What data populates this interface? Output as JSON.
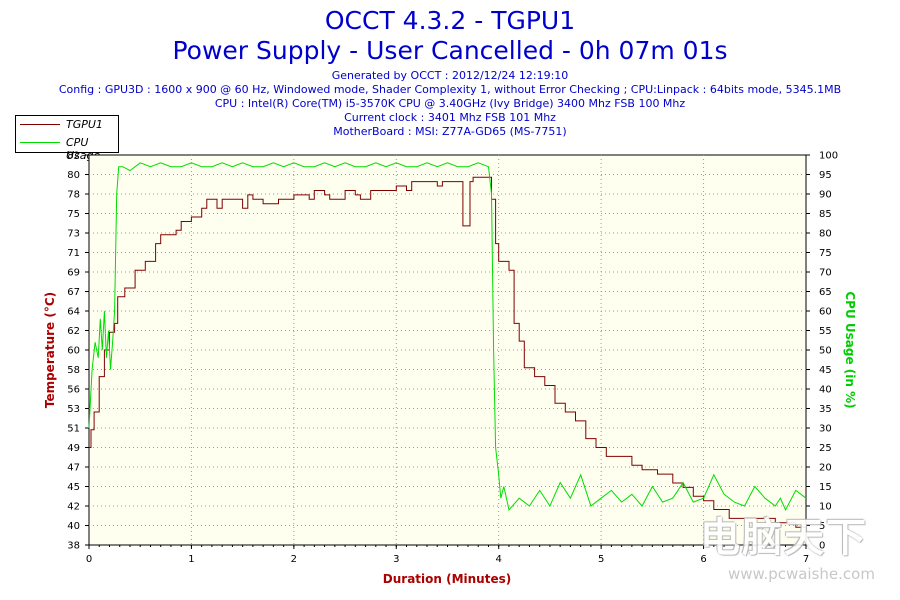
{
  "header": {
    "title_line1": "OCCT 4.3.2 - TGPU1",
    "title_line2": "Power Supply - User Cancelled - 0h 07m 01s",
    "info_lines": [
      "Generated by OCCT : 2012/12/24 12:19:10",
      "Config : GPU3D : 1600 x 900 @ 60 Hz, Windowed mode, Shader Complexity 1, without Error Checking ; CPU:Linpack : 64bits mode, 5345.1MB",
      "CPU : Intel(R) Core(TM) i5-3570K CPU @ 3.40GHz (Ivy Bridge) 3400 Mhz FSB 100 Mhz",
      "Current clock : 3401 Mhz FSB 101 Mhz",
      "MotherBoard : MSI: Z77A-GD65 (MS-7751)"
    ]
  },
  "legend": [
    {
      "label": "TGPU1",
      "color": "#800000"
    },
    {
      "label": "CPU Usage",
      "color": "#00dd00"
    }
  ],
  "watermark": {
    "text_cn": "电脑天下",
    "url": "www.pcwaishe.com"
  },
  "chart_data": {
    "type": "line",
    "xlabel": "Duration (Minutes)",
    "ylabel_left": "Temperature (°C)",
    "ylabel_right": "CPU Usage (in %)",
    "xlim": [
      0,
      7
    ],
    "x_ticks": [
      "0",
      "1",
      "2",
      "3",
      "4",
      "5",
      "6",
      "7"
    ],
    "ylim_left": [
      38,
      82
    ],
    "y_ticks_left": [
      "38",
      "40",
      "42",
      "45",
      "47",
      "49",
      "51",
      "53",
      "56",
      "58",
      "60",
      "62",
      "64",
      "67",
      "69",
      "71",
      "73",
      "75",
      "78",
      "80",
      "82"
    ],
    "ylim_right": [
      0,
      100
    ],
    "y_ticks_right": [
      "0",
      "5",
      "10",
      "15",
      "20",
      "25",
      "30",
      "35",
      "40",
      "45",
      "50",
      "55",
      "60",
      "65",
      "70",
      "75",
      "80",
      "85",
      "90",
      "95",
      "100"
    ],
    "grid": true,
    "legend_position": "top-left",
    "series": [
      {
        "name": "TGPU1",
        "axis": "left",
        "color": "#800000",
        "points": [
          [
            0.0,
            49
          ],
          [
            0.02,
            51
          ],
          [
            0.05,
            53
          ],
          [
            0.1,
            57
          ],
          [
            0.15,
            60
          ],
          [
            0.2,
            62
          ],
          [
            0.25,
            63
          ],
          [
            0.28,
            66
          ],
          [
            0.35,
            67
          ],
          [
            0.45,
            69
          ],
          [
            0.55,
            70
          ],
          [
            0.65,
            72
          ],
          [
            0.7,
            73
          ],
          [
            0.85,
            73.5
          ],
          [
            0.9,
            74.5
          ],
          [
            1.0,
            75
          ],
          [
            1.1,
            76
          ],
          [
            1.15,
            77
          ],
          [
            1.25,
            76
          ],
          [
            1.3,
            77
          ],
          [
            1.45,
            77
          ],
          [
            1.5,
            76
          ],
          [
            1.55,
            77.5
          ],
          [
            1.6,
            77
          ],
          [
            1.7,
            76.5
          ],
          [
            1.85,
            77
          ],
          [
            2.0,
            77.5
          ],
          [
            2.1,
            77.5
          ],
          [
            2.15,
            77
          ],
          [
            2.2,
            78
          ],
          [
            2.3,
            77.5
          ],
          [
            2.35,
            77
          ],
          [
            2.45,
            77
          ],
          [
            2.5,
            78
          ],
          [
            2.6,
            77.5
          ],
          [
            2.65,
            77
          ],
          [
            2.75,
            78
          ],
          [
            2.9,
            78
          ],
          [
            3.0,
            78.5
          ],
          [
            3.1,
            78
          ],
          [
            3.15,
            79
          ],
          [
            3.3,
            79
          ],
          [
            3.4,
            78.5
          ],
          [
            3.45,
            79
          ],
          [
            3.6,
            79
          ],
          [
            3.65,
            74
          ],
          [
            3.7,
            74
          ],
          [
            3.72,
            79
          ],
          [
            3.75,
            79.5
          ],
          [
            3.85,
            79.5
          ],
          [
            3.9,
            79.5
          ],
          [
            3.93,
            77
          ],
          [
            3.97,
            72
          ],
          [
            4.0,
            70
          ],
          [
            4.1,
            69
          ],
          [
            4.15,
            63
          ],
          [
            4.2,
            61
          ],
          [
            4.25,
            58
          ],
          [
            4.35,
            57
          ],
          [
            4.45,
            56
          ],
          [
            4.55,
            54
          ],
          [
            4.65,
            53
          ],
          [
            4.75,
            52
          ],
          [
            4.85,
            50
          ],
          [
            4.95,
            49
          ],
          [
            5.05,
            48
          ],
          [
            5.2,
            48
          ],
          [
            5.3,
            47
          ],
          [
            5.4,
            46.5
          ],
          [
            5.55,
            46
          ],
          [
            5.7,
            45
          ],
          [
            5.8,
            44.5
          ],
          [
            5.9,
            43.5
          ],
          [
            6.0,
            43
          ],
          [
            6.1,
            42
          ],
          [
            6.2,
            42
          ],
          [
            6.25,
            41
          ],
          [
            6.4,
            41
          ],
          [
            6.5,
            41
          ],
          [
            6.7,
            40.5
          ],
          [
            6.9,
            40
          ],
          [
            7.0,
            40
          ]
        ]
      },
      {
        "name": "CPU Usage",
        "axis": "right",
        "color": "#00dd00",
        "points": [
          [
            0.0,
            30
          ],
          [
            0.03,
            45
          ],
          [
            0.06,
            52
          ],
          [
            0.09,
            48
          ],
          [
            0.11,
            58
          ],
          [
            0.13,
            50
          ],
          [
            0.15,
            60
          ],
          [
            0.17,
            48
          ],
          [
            0.19,
            55
          ],
          [
            0.21,
            45
          ],
          [
            0.23,
            52
          ],
          [
            0.25,
            60
          ],
          [
            0.27,
            90
          ],
          [
            0.29,
            97
          ],
          [
            0.33,
            97
          ],
          [
            0.4,
            96
          ],
          [
            0.5,
            98
          ],
          [
            0.6,
            97
          ],
          [
            0.7,
            98
          ],
          [
            0.8,
            97
          ],
          [
            0.9,
            97
          ],
          [
            1.0,
            98
          ],
          [
            1.1,
            97
          ],
          [
            1.2,
            97
          ],
          [
            1.3,
            98
          ],
          [
            1.4,
            97
          ],
          [
            1.5,
            98
          ],
          [
            1.6,
            97
          ],
          [
            1.7,
            97
          ],
          [
            1.8,
            98
          ],
          [
            1.9,
            97
          ],
          [
            2.0,
            98
          ],
          [
            2.1,
            97
          ],
          [
            2.2,
            97
          ],
          [
            2.3,
            98
          ],
          [
            2.4,
            97
          ],
          [
            2.5,
            98
          ],
          [
            2.6,
            97
          ],
          [
            2.7,
            97
          ],
          [
            2.8,
            98
          ],
          [
            2.9,
            97
          ],
          [
            3.0,
            98
          ],
          [
            3.1,
            97
          ],
          [
            3.2,
            97
          ],
          [
            3.3,
            98
          ],
          [
            3.4,
            97
          ],
          [
            3.5,
            98
          ],
          [
            3.6,
            97
          ],
          [
            3.7,
            97
          ],
          [
            3.8,
            98
          ],
          [
            3.9,
            97
          ],
          [
            3.93,
            90
          ],
          [
            3.95,
            50
          ],
          [
            3.97,
            25
          ],
          [
            4.0,
            18
          ],
          [
            4.02,
            12
          ],
          [
            4.05,
            15
          ],
          [
            4.1,
            9
          ],
          [
            4.2,
            12
          ],
          [
            4.3,
            10
          ],
          [
            4.4,
            14
          ],
          [
            4.5,
            10
          ],
          [
            4.6,
            16
          ],
          [
            4.7,
            12
          ],
          [
            4.8,
            18
          ],
          [
            4.9,
            10
          ],
          [
            5.0,
            12
          ],
          [
            5.1,
            14
          ],
          [
            5.2,
            11
          ],
          [
            5.3,
            13
          ],
          [
            5.4,
            10
          ],
          [
            5.5,
            15
          ],
          [
            5.6,
            11
          ],
          [
            5.7,
            12
          ],
          [
            5.8,
            16
          ],
          [
            5.9,
            11
          ],
          [
            6.0,
            12
          ],
          [
            6.1,
            18
          ],
          [
            6.2,
            13
          ],
          [
            6.3,
            11
          ],
          [
            6.4,
            10
          ],
          [
            6.5,
            15
          ],
          [
            6.6,
            12
          ],
          [
            6.7,
            10
          ],
          [
            6.75,
            12
          ],
          [
            6.8,
            9
          ],
          [
            6.9,
            14
          ],
          [
            7.0,
            12
          ]
        ]
      }
    ]
  }
}
